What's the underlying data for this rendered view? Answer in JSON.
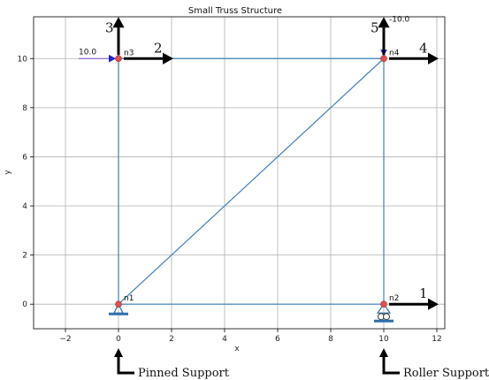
{
  "title": "Small Truss Structure",
  "axes": {
    "xlabel": "x",
    "ylabel": "y",
    "xlim": [
      -3.2,
      12.3
    ],
    "ylim": [
      -1.0,
      11.7
    ],
    "xticks": [
      -2,
      0,
      2,
      4,
      6,
      8,
      10,
      12
    ],
    "yticks": [
      0,
      2,
      4,
      6,
      8,
      10
    ],
    "grid": true
  },
  "colors": {
    "member": "#3f7fbf",
    "node": "#d9534f",
    "support": "#2f6fad",
    "load_arrow": "#2222cc",
    "load_line": "#7a4fd0",
    "dof_arrow": "#000000"
  },
  "nodes": [
    {
      "id": "n1",
      "label": "n1",
      "x": 0,
      "y": 0
    },
    {
      "id": "n2",
      "label": "n2",
      "x": 10,
      "y": 0
    },
    {
      "id": "n3",
      "label": "n3",
      "x": 0,
      "y": 10
    },
    {
      "id": "n4",
      "label": "n4",
      "x": 10,
      "y": 10
    }
  ],
  "members": [
    {
      "from": "n1",
      "to": "n2"
    },
    {
      "from": "n1",
      "to": "n3"
    },
    {
      "from": "n2",
      "to": "n4"
    },
    {
      "from": "n3",
      "to": "n4"
    },
    {
      "from": "n1",
      "to": "n4"
    }
  ],
  "loads": [
    {
      "node": "n3",
      "direction": "x",
      "value_label": "10.0"
    },
    {
      "node": "n4",
      "direction": "y",
      "value_label": "-10.0"
    }
  ],
  "dof_labels": [
    {
      "label": "1",
      "node": "n2",
      "direction": "x"
    },
    {
      "label": "2",
      "node": "n3",
      "direction": "x"
    },
    {
      "label": "3",
      "node": "n3",
      "direction": "y"
    },
    {
      "label": "4",
      "node": "n4",
      "direction": "x"
    },
    {
      "label": "5",
      "node": "n4",
      "direction": "y"
    }
  ],
  "supports": [
    {
      "node": "n1",
      "type": "pinned",
      "label": "Pinned Support"
    },
    {
      "node": "n2",
      "type": "roller",
      "label": "Roller Support"
    }
  ]
}
